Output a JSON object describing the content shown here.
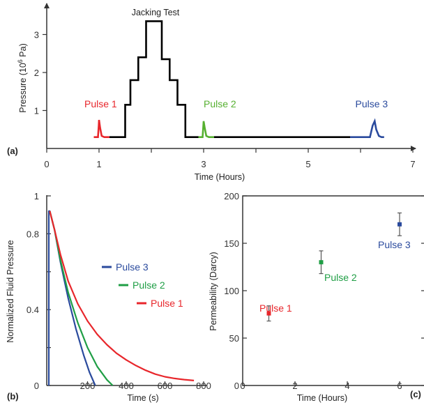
{
  "figure": {
    "panel_labels": [
      "(a)",
      "(b)",
      "(c)"
    ]
  },
  "chart_data": [
    {
      "panel": "(a)",
      "type": "line",
      "title": "Jacking Test",
      "xlabel": "Time (Hours)",
      "ylabel": "Pressure (10^6 Pa)",
      "ylabel_parts": [
        "Pressure (10",
        "6",
        " Pa)"
      ],
      "xlim": [
        0,
        7
      ],
      "ylim": [
        0,
        3.8
      ],
      "xticks": [
        0,
        1,
        3,
        5,
        7
      ],
      "xticks_minor": [
        2,
        4,
        6
      ],
      "yticks": [
        1,
        2,
        3
      ],
      "grid": false,
      "series": [
        {
          "name": "Pulse 1",
          "color": "#e8262b",
          "x": [
            0.9,
            0.98,
            0.995,
            1.0,
            1.02,
            1.05,
            1.1,
            1.2
          ],
          "y": [
            0.3,
            0.3,
            0.6,
            0.75,
            0.55,
            0.33,
            0.3,
            0.3
          ]
        },
        {
          "name": "Jacking Test",
          "color": "#000000",
          "x": [
            1.2,
            1.5,
            1.5,
            1.6,
            1.6,
            1.75,
            1.75,
            1.9,
            1.9,
            2.2,
            2.2,
            2.35,
            2.35,
            2.5,
            2.5,
            2.65,
            2.65,
            2.9
          ],
          "y": [
            0.3,
            0.3,
            1.15,
            1.15,
            1.8,
            1.8,
            2.4,
            2.4,
            3.35,
            3.35,
            2.35,
            2.35,
            1.8,
            1.8,
            1.15,
            1.15,
            0.3,
            0.3
          ]
        },
        {
          "name": "Pulse 2",
          "color": "#56b030",
          "x": [
            2.9,
            2.98,
            2.995,
            3.0,
            3.02,
            3.05,
            3.1,
            3.2
          ],
          "y": [
            0.3,
            0.3,
            0.6,
            0.72,
            0.55,
            0.33,
            0.3,
            0.3
          ]
        },
        {
          "name": "",
          "color": "#000000",
          "x": [
            3.2,
            5.8
          ],
          "y": [
            0.3,
            0.3
          ]
        },
        {
          "name": "Pulse 3",
          "color": "#2a4a9d",
          "x": [
            5.8,
            6.18,
            6.23,
            6.27,
            6.3,
            6.35,
            6.4,
            6.45
          ],
          "y": [
            0.3,
            0.3,
            0.6,
            0.72,
            0.5,
            0.33,
            0.3,
            0.3
          ]
        }
      ],
      "annotations": [
        {
          "text": "Pulse 1",
          "color": "#e8262b",
          "x": 0.72,
          "y": 1.08
        },
        {
          "text": "Pulse 2",
          "color": "#56b030",
          "x": 3.0,
          "y": 1.08
        },
        {
          "text": "Pulse 3",
          "color": "#2a4a9d",
          "x": 5.9,
          "y": 1.08
        },
        {
          "text": "Jacking Test",
          "color": "#000000",
          "x": 2.0,
          "y": 3.6
        }
      ]
    },
    {
      "panel": "(b)",
      "type": "line",
      "title": "",
      "xlabel": "Time (s)",
      "ylabel": "Normalized Fluid Pressure",
      "xlim": [
        -5,
        800
      ],
      "ylim": [
        0,
        1.0
      ],
      "xticks": [
        200,
        400,
        600,
        800
      ],
      "yticks": [
        0,
        0.4,
        0.8,
        1
      ],
      "yticks_minor": [
        0.2,
        0.6
      ],
      "grid": false,
      "legend_position": "right",
      "series": [
        {
          "name": "Pulse 3",
          "color": "#2a4a9d",
          "x": [
            0,
            0,
            5,
            30,
            60,
            100,
            140,
            180,
            210,
            240
          ],
          "y": [
            0,
            0.92,
            0.92,
            0.82,
            0.65,
            0.46,
            0.3,
            0.16,
            0.07,
            0.0
          ]
        },
        {
          "name": "Pulse 2",
          "color": "#1f9e45",
          "x": [
            5,
            30,
            60,
            100,
            150,
            200,
            250,
            300,
            330
          ],
          "y": [
            0.92,
            0.82,
            0.66,
            0.49,
            0.33,
            0.2,
            0.1,
            0.03,
            0.0
          ]
        },
        {
          "name": "Pulse 1",
          "color": "#e8262b",
          "x": [
            5,
            30,
            60,
            100,
            150,
            200,
            250,
            300,
            350,
            400,
            450,
            500,
            550,
            600,
            650,
            700,
            750
          ],
          "y": [
            0.92,
            0.82,
            0.69,
            0.55,
            0.43,
            0.34,
            0.27,
            0.215,
            0.17,
            0.135,
            0.105,
            0.08,
            0.06,
            0.046,
            0.037,
            0.031,
            0.026
          ]
        }
      ]
    },
    {
      "panel": "(c)",
      "type": "scatter",
      "title": "",
      "xlabel": "Time (Hours)",
      "ylabel": "Permeability (Darcy)",
      "xlim": [
        0,
        6.5
      ],
      "ylim": [
        0,
        200
      ],
      "xticks": [
        0,
        2,
        4,
        6
      ],
      "yticks": [
        0,
        50,
        100,
        150,
        200
      ],
      "grid": false,
      "series": [
        {
          "name": "Pulse 1",
          "color": "#e8262b",
          "x": [
            1
          ],
          "y": [
            76
          ],
          "err": [
            8
          ]
        },
        {
          "name": "Pulse 2",
          "color": "#1f9e45",
          "x": [
            3
          ],
          "y": [
            130
          ],
          "err": [
            12
          ]
        },
        {
          "name": "Pulse 3",
          "color": "#2a4a9d",
          "x": [
            6
          ],
          "y": [
            170
          ],
          "err": [
            12
          ]
        }
      ],
      "annotations": [
        {
          "text": "Pulse 1",
          "color": "#e8262b"
        },
        {
          "text": "Pulse 2",
          "color": "#1f9e45"
        },
        {
          "text": "Pulse 3",
          "color": "#2a4a9d"
        }
      ]
    }
  ]
}
